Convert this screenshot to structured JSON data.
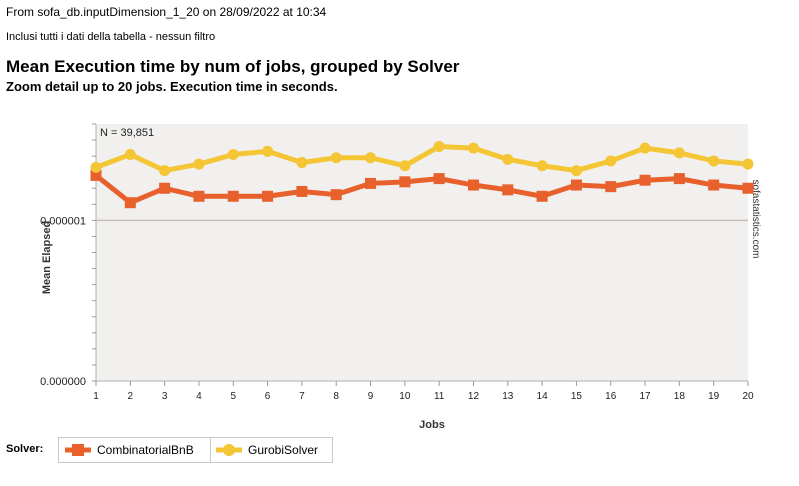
{
  "header": {
    "source": "From sofa_db.inputDimension_1_20 on 28/09/2022 at 10:34",
    "filter": "Inclusi tutti i dati della tabella - nessun filtro",
    "title": "Mean Execution time by num of jobs, grouped by Solver",
    "subtitle": "Zoom detail up to 20 jobs. Execution time in seconds."
  },
  "legend": {
    "label": "Solver:",
    "items": [
      "CombinatorialBnB",
      "GurobiSolver"
    ]
  },
  "chart_data": {
    "type": "line",
    "n_label": "N = 39,851",
    "watermark": "sofastatistics.com",
    "xlabel": "Jobs",
    "ylabel": "Mean Elapsed",
    "categories": [
      "1",
      "2",
      "3",
      "4",
      "5",
      "6",
      "7",
      "8",
      "9",
      "10",
      "11",
      "12",
      "13",
      "14",
      "15",
      "16",
      "17",
      "18",
      "19",
      "20"
    ],
    "y_ticks": [
      "0.000000",
      "0.000001"
    ],
    "ylim": [
      0,
      1.6e-06
    ],
    "grid": "horizontal at 0.000001",
    "legend_position": "bottom-left",
    "series": [
      {
        "name": "CombinatorialBnB",
        "color": "#e8612c",
        "marker": "square",
        "values": [
          1.28e-06,
          1.11e-06,
          1.2e-06,
          1.15e-06,
          1.15e-06,
          1.15e-06,
          1.18e-06,
          1.16e-06,
          1.23e-06,
          1.24e-06,
          1.26e-06,
          1.22e-06,
          1.19e-06,
          1.15e-06,
          1.22e-06,
          1.21e-06,
          1.25e-06,
          1.26e-06,
          1.22e-06,
          1.2e-06
        ]
      },
      {
        "name": "GurobiSolver",
        "color": "#f4c534",
        "marker": "circle",
        "values": [
          1.33e-06,
          1.41e-06,
          1.31e-06,
          1.35e-06,
          1.41e-06,
          1.43e-06,
          1.36e-06,
          1.39e-06,
          1.39e-06,
          1.34e-06,
          1.46e-06,
          1.45e-06,
          1.38e-06,
          1.34e-06,
          1.31e-06,
          1.37e-06,
          1.45e-06,
          1.42e-06,
          1.37e-06,
          1.35e-06
        ]
      }
    ]
  }
}
